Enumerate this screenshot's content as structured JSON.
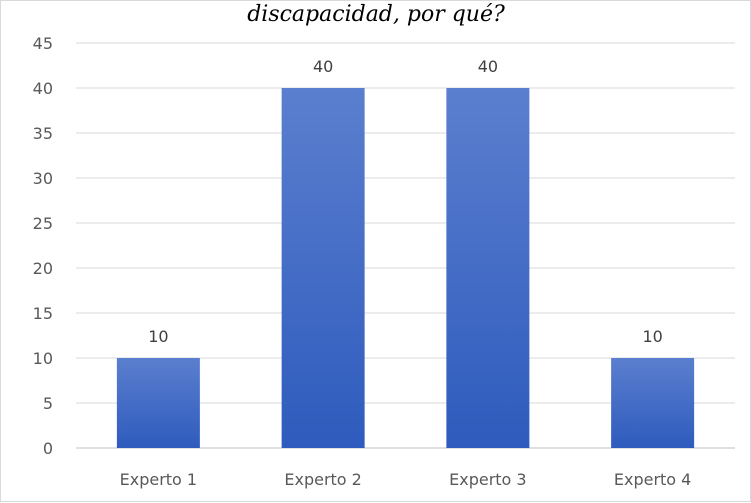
{
  "chart_data": {
    "type": "bar",
    "title": "discapacidad, por qué?",
    "categories": [
      "Experto 1",
      "Experto 2",
      "Experto 3",
      "Experto 4"
    ],
    "values": [
      10,
      40,
      40,
      10
    ],
    "data_labels": [
      "10",
      "40",
      "40",
      "10"
    ],
    "ylim": [
      0,
      45
    ],
    "yticks": [
      0,
      5,
      10,
      15,
      20,
      25,
      30,
      35,
      40,
      45
    ],
    "grid": true,
    "legend": "none",
    "colors": {
      "bar_top": "#5b7fcf",
      "bar_bottom": "#2e5bbd",
      "grid": "#d9d9d9",
      "axis": "#bfbfbf"
    }
  }
}
